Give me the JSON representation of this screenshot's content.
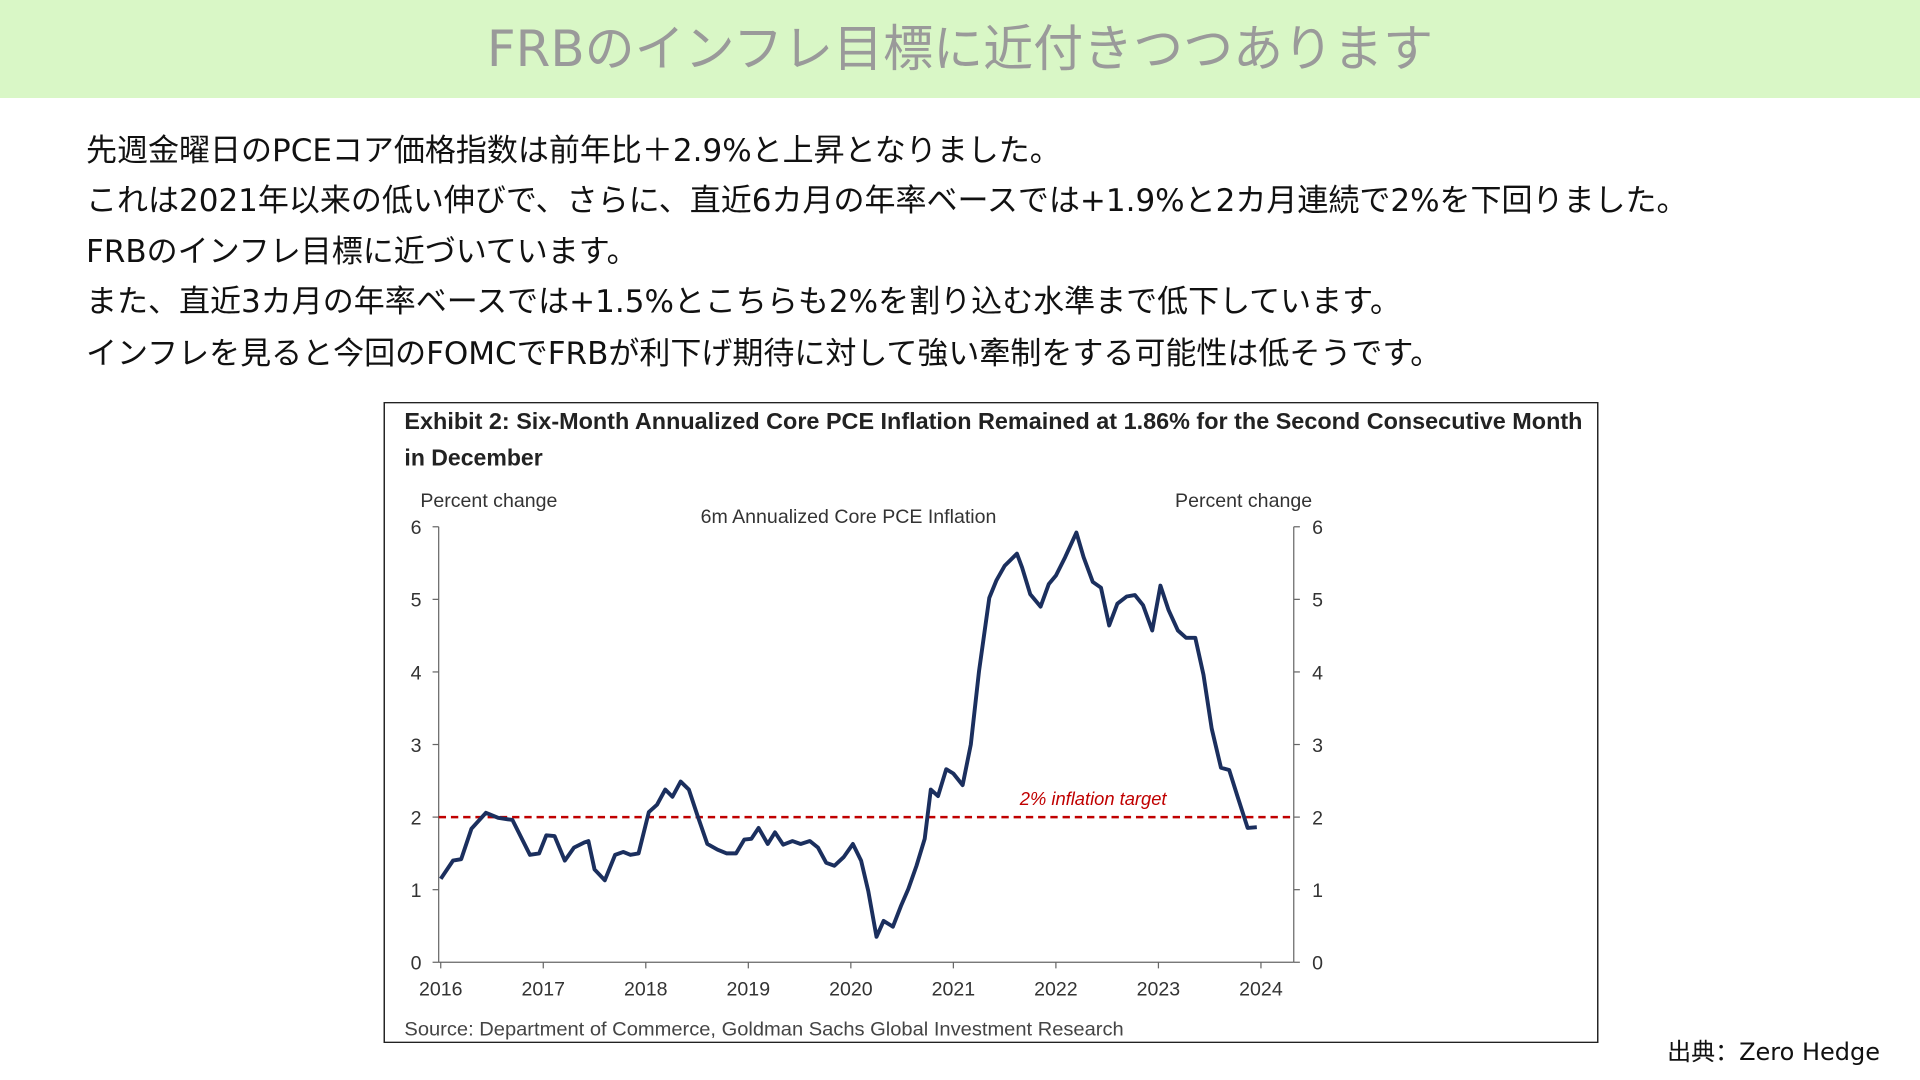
{
  "header": {
    "title": "FRBのインフレ目標に近付きつつあります"
  },
  "paragraphs": [
    "先週金曜日のPCEコア価格指数は前年比＋2.9%と上昇となりました。",
    "これは2021年以来の低い伸びで、さらに、直近6カ月の年率ベースでは+1.9%と2カ月連続で2%を下回りました。",
    "FRBのインフレ目標に近づいています。",
    "また、直近3カ月の年率ベースでは+1.5%とこちらも2%を割り込む水準まで低下しています。",
    "インフレを見ると今回のFOMCでFRBが利下げ期待に対して強い牽制をする可能性は低そうです。"
  ],
  "credit": "出典：Zero Hedge",
  "chart_data": {
    "type": "line",
    "title": [
      "Exhibit 2: Six-Month Annualized Core PCE Inflation Remained at 1.86% for the Second Consecutive Month",
      "in December"
    ],
    "ylabel": "Percent change",
    "y2label": "Percent change",
    "source": "Source: Department of Commerce, Goldman Sachs Global Investment Research",
    "x": [
      2016.0,
      2016.12,
      2016.2,
      2016.3,
      2016.44,
      2016.56,
      2016.7,
      2016.87,
      2016.96,
      2017.03,
      2017.11,
      2017.21,
      2017.3,
      2017.4,
      2017.44,
      2017.5,
      2017.6,
      2017.7,
      2017.78,
      2017.85,
      2017.93,
      2018.03,
      2018.11,
      2018.19,
      2018.26,
      2018.34,
      2018.42,
      2018.5,
      2018.6,
      2018.7,
      2018.79,
      2018.88,
      2018.96,
      2019.03,
      2019.1,
      2019.19,
      2019.26,
      2019.34,
      2019.43,
      2019.51,
      2019.6,
      2019.68,
      2019.76,
      2019.84,
      2019.93,
      2020.02,
      2020.1,
      2020.17,
      2020.25,
      2020.32,
      2020.41,
      2020.49,
      2020.56,
      2020.64,
      2020.72,
      2020.78,
      2020.85,
      2020.93,
      2021.0,
      2021.09,
      2021.17,
      2021.25,
      2021.35,
      2021.42,
      2021.5,
      2021.62,
      2021.67,
      2021.75,
      2021.85,
      2021.93,
      2022.0,
      2022.09,
      2022.2,
      2022.27,
      2022.36,
      2022.44,
      2022.52,
      2022.6,
      2022.69,
      2022.77,
      2022.85,
      2022.94,
      2023.02,
      2023.1,
      2023.19,
      2023.27,
      2023.36,
      2023.44,
      2023.52,
      2023.61,
      2023.69,
      2023.77,
      2023.87,
      2023.96
    ],
    "series": [
      {
        "name": "6m Annualized Core PCE Inflation",
        "color": "#1b2f5e",
        "values": [
          1.15,
          1.4,
          1.42,
          1.84,
          2.06,
          1.99,
          1.96,
          1.48,
          1.5,
          1.75,
          1.74,
          1.4,
          1.58,
          1.65,
          1.67,
          1.28,
          1.13,
          1.48,
          1.52,
          1.48,
          1.5,
          2.07,
          2.17,
          2.38,
          2.28,
          2.49,
          2.38,
          2.04,
          1.63,
          1.55,
          1.5,
          1.5,
          1.69,
          1.7,
          1.85,
          1.63,
          1.79,
          1.62,
          1.67,
          1.63,
          1.67,
          1.58,
          1.37,
          1.33,
          1.45,
          1.63,
          1.4,
          0.98,
          0.35,
          0.57,
          0.49,
          0.78,
          1.01,
          1.33,
          1.7,
          2.38,
          2.29,
          2.66,
          2.6,
          2.44,
          3.0,
          4.01,
          5.02,
          5.26,
          5.46,
          5.63,
          5.44,
          5.07,
          4.9,
          5.21,
          5.33,
          5.58,
          5.92,
          5.58,
          5.24,
          5.16,
          4.64,
          4.94,
          5.04,
          5.06,
          4.92,
          4.57,
          5.19,
          4.85,
          4.57,
          4.47,
          4.47,
          3.96,
          3.22,
          2.68,
          2.65,
          2.29,
          1.85,
          1.86
        ]
      }
    ],
    "reference_line": {
      "value": 2,
      "label": "2% inflation target",
      "color": "#c00000"
    },
    "xlim": [
      2015.98,
      2024.32
    ],
    "xticks": [
      2016,
      2017,
      2018,
      2019,
      2020,
      2021,
      2022,
      2023,
      2024
    ],
    "ylim": [
      0,
      6
    ],
    "yticks": [
      0,
      1,
      2,
      3,
      4,
      5,
      6
    ],
    "y2lim": [
      0,
      6
    ],
    "y2ticks": [
      0,
      1,
      2,
      3,
      4,
      5,
      6
    ]
  }
}
